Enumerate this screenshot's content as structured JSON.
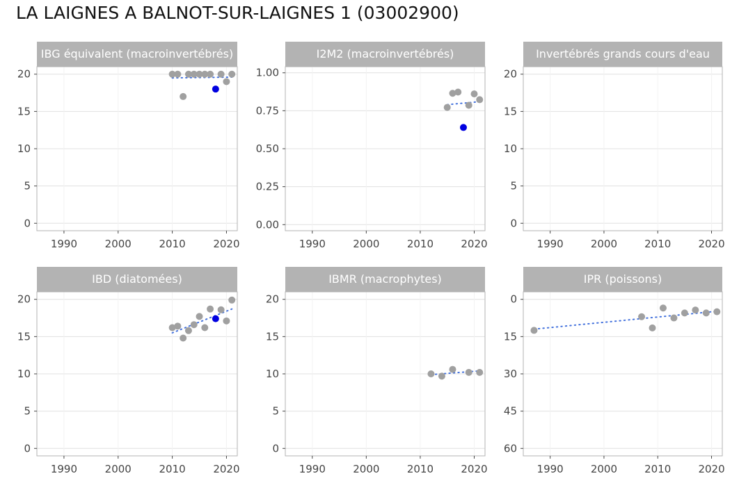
{
  "title": "LA LAIGNES A BALNOT-SUR-LAIGNES 1 (03002900)",
  "colors": {
    "strip": "#b3b3b3",
    "point": "#a0a0a0",
    "highlight": "#0000e0",
    "trend": "#4472dd",
    "grid": "#e0e0e0",
    "panel_border": "#b3b3b3"
  },
  "chart_data": [
    {
      "type": "scatter",
      "title": "IBG équivalent (macroinvertébrés)",
      "xlim": [
        1985,
        2022
      ],
      "ylim": [
        -1,
        21
      ],
      "y_reversed": false,
      "x_ticks": [
        1990,
        2000,
        2010,
        2020
      ],
      "x_tick_labels": [
        "1990",
        "2000",
        "2010",
        "2020"
      ],
      "y_ticks": [
        0,
        5,
        10,
        15,
        20
      ],
      "y_tick_labels": [
        "0",
        "5",
        "10",
        "15",
        "20"
      ],
      "points": [
        {
          "x": 2010,
          "y": 20
        },
        {
          "x": 2011,
          "y": 20
        },
        {
          "x": 2012,
          "y": 17
        },
        {
          "x": 2013,
          "y": 20
        },
        {
          "x": 2014,
          "y": 20
        },
        {
          "x": 2015,
          "y": 20
        },
        {
          "x": 2016,
          "y": 20
        },
        {
          "x": 2017,
          "y": 20
        },
        {
          "x": 2019,
          "y": 20
        },
        {
          "x": 2020,
          "y": 19
        },
        {
          "x": 2021,
          "y": 20
        }
      ],
      "highlight_points": [
        {
          "x": 2018,
          "y": 18
        }
      ],
      "trend": [
        {
          "x": 2010,
          "y": 19.5
        },
        {
          "x": 2021,
          "y": 19.6
        }
      ]
    },
    {
      "type": "scatter",
      "title": "I2M2 (macroinvertébrés)",
      "xlim": [
        1985,
        2022
      ],
      "ylim": [
        -0.04,
        1.04
      ],
      "y_reversed": false,
      "x_ticks": [
        1990,
        2000,
        2010,
        2020
      ],
      "x_tick_labels": [
        "1990",
        "2000",
        "2010",
        "2020"
      ],
      "y_ticks": [
        0,
        0.25,
        0.5,
        0.75,
        1.0
      ],
      "y_tick_labels": [
        "0.00",
        "0.25",
        "0.50",
        "0.75",
        "1.00"
      ],
      "points": [
        {
          "x": 2015,
          "y": 0.772
        },
        {
          "x": 2016,
          "y": 0.865
        },
        {
          "x": 2017,
          "y": 0.873
        },
        {
          "x": 2019,
          "y": 0.786
        },
        {
          "x": 2020,
          "y": 0.861
        },
        {
          "x": 2021,
          "y": 0.823
        }
      ],
      "highlight_points": [
        {
          "x": 2018,
          "y": 0.64
        }
      ],
      "trend": [
        {
          "x": 2015,
          "y": 0.79
        },
        {
          "x": 2021,
          "y": 0.81
        }
      ]
    },
    {
      "type": "scatter",
      "title": "Invertébrés grands cours d'eau",
      "xlim": [
        1985,
        2022
      ],
      "ylim": [
        -1,
        21
      ],
      "y_reversed": false,
      "x_ticks": [
        1990,
        2000,
        2010,
        2020
      ],
      "x_tick_labels": [
        "1990",
        "2000",
        "2010",
        "2020"
      ],
      "y_ticks": [
        0,
        5,
        10,
        15,
        20
      ],
      "y_tick_labels": [
        "0",
        "5",
        "10",
        "15",
        "20"
      ],
      "points": [],
      "highlight_points": [],
      "trend": []
    },
    {
      "type": "scatter",
      "title": "IBD (diatomées)",
      "xlim": [
        1985,
        2022
      ],
      "ylim": [
        -1,
        21
      ],
      "y_reversed": false,
      "x_ticks": [
        1990,
        2000,
        2010,
        2020
      ],
      "x_tick_labels": [
        "1990",
        "2000",
        "2010",
        "2020"
      ],
      "y_ticks": [
        0,
        5,
        10,
        15,
        20
      ],
      "y_tick_labels": [
        "0",
        "5",
        "10",
        "15",
        "20"
      ],
      "points": [
        {
          "x": 2010,
          "y": 16.2
        },
        {
          "x": 2011,
          "y": 16.4
        },
        {
          "x": 2012,
          "y": 14.8
        },
        {
          "x": 2013,
          "y": 15.8
        },
        {
          "x": 2014,
          "y": 16.6
        },
        {
          "x": 2015,
          "y": 17.7
        },
        {
          "x": 2016,
          "y": 16.2
        },
        {
          "x": 2017,
          "y": 18.7
        },
        {
          "x": 2019,
          "y": 18.6
        },
        {
          "x": 2020,
          "y": 17.1
        },
        {
          "x": 2021,
          "y": 19.9
        }
      ],
      "highlight_points": [
        {
          "x": 2018,
          "y": 17.4
        }
      ],
      "trend": [
        {
          "x": 2010,
          "y": 15.5
        },
        {
          "x": 2021,
          "y": 18.7
        }
      ]
    },
    {
      "type": "scatter",
      "title": "IBMR (macrophytes)",
      "xlim": [
        1985,
        2022
      ],
      "ylim": [
        -1,
        21
      ],
      "y_reversed": false,
      "x_ticks": [
        1990,
        2000,
        2010,
        2020
      ],
      "x_tick_labels": [
        "1990",
        "2000",
        "2010",
        "2020"
      ],
      "y_ticks": [
        0,
        5,
        10,
        15,
        20
      ],
      "y_tick_labels": [
        "0",
        "5",
        "10",
        "15",
        "20"
      ],
      "points": [
        {
          "x": 2012,
          "y": 10.0
        },
        {
          "x": 2014,
          "y": 9.7
        },
        {
          "x": 2016,
          "y": 10.6
        },
        {
          "x": 2019,
          "y": 10.2
        },
        {
          "x": 2021,
          "y": 10.2
        }
      ],
      "highlight_points": [],
      "trend": [
        {
          "x": 2012,
          "y": 9.9
        },
        {
          "x": 2021,
          "y": 10.4
        }
      ]
    },
    {
      "type": "scatter",
      "title": "IPR (poissons)",
      "xlim": [
        1985,
        2022
      ],
      "ylim": [
        -3,
        63
      ],
      "y_reversed": true,
      "x_ticks": [
        1990,
        2000,
        2010,
        2020
      ],
      "x_tick_labels": [
        "1990",
        "2000",
        "2010",
        "2020"
      ],
      "y_ticks": [
        0,
        15,
        30,
        45,
        60
      ],
      "y_tick_labels": [
        "0",
        "15",
        "30",
        "45",
        "60"
      ],
      "points": [
        {
          "x": 1987,
          "y": 12.5
        },
        {
          "x": 2007,
          "y": 7.0
        },
        {
          "x": 2009,
          "y": 11.5
        },
        {
          "x": 2011,
          "y": 3.5
        },
        {
          "x": 2013,
          "y": 7.5
        },
        {
          "x": 2015,
          "y": 5.5
        },
        {
          "x": 2017,
          "y": 4.3
        },
        {
          "x": 2019,
          "y": 5.5
        },
        {
          "x": 2021,
          "y": 5.0
        }
      ],
      "highlight_points": [],
      "trend": [
        {
          "x": 1987,
          "y": 12.0
        },
        {
          "x": 2021,
          "y": 4.8
        }
      ]
    }
  ]
}
